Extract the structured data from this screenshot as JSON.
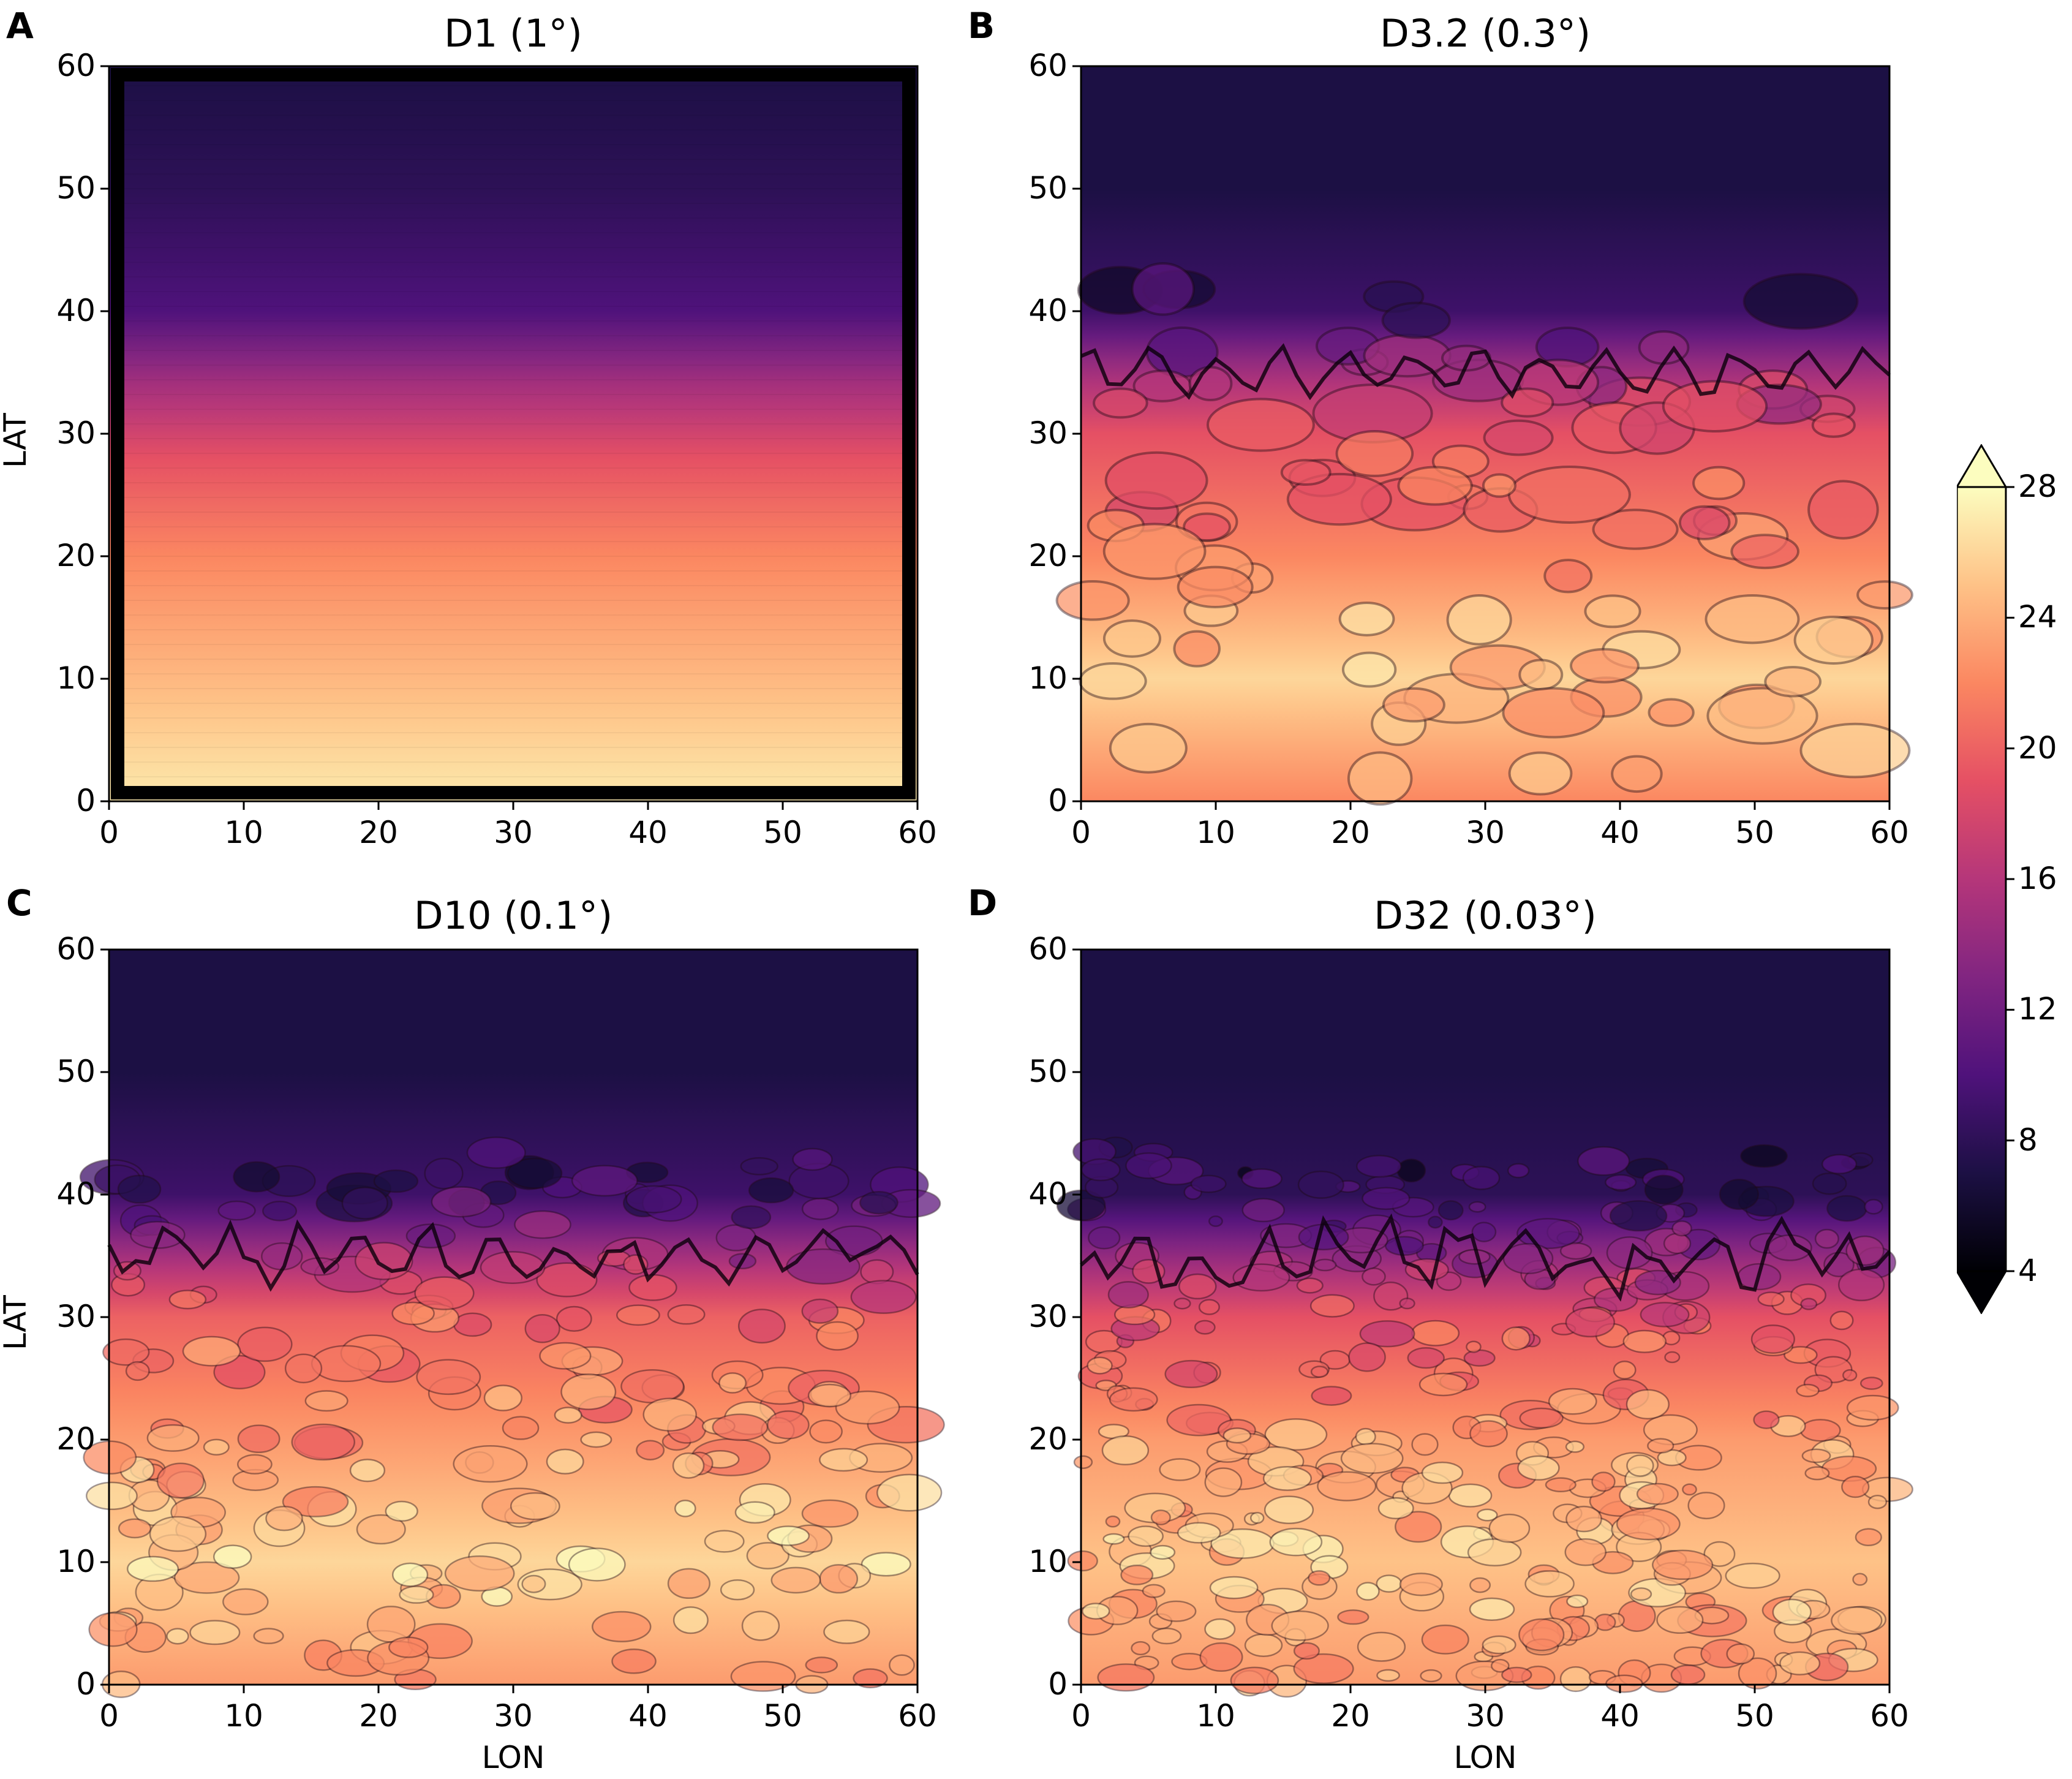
{
  "chart_data": [
    {
      "type": "heatmap",
      "panel": "A",
      "title": "D1 (1°)",
      "xlabel": "",
      "ylabel": "LAT",
      "xlim": [
        0,
        60
      ],
      "ylim": [
        0,
        60
      ],
      "xticks": [
        "0",
        "10",
        "20",
        "30",
        "40",
        "50",
        "60"
      ],
      "yticks": [
        "0",
        "10",
        "20",
        "30",
        "40",
        "50",
        "60"
      ],
      "field_profile": [
        {
          "lat": 0,
          "value": 27
        },
        {
          "lat": 8,
          "value": 25
        },
        {
          "lat": 20,
          "value": 22
        },
        {
          "lat": 28,
          "value": 19
        },
        {
          "lat": 34,
          "value": 15
        },
        {
          "lat": 40,
          "value": 10
        },
        {
          "lat": 50,
          "value": 8
        },
        {
          "lat": 60,
          "value": 7
        }
      ],
      "roughness": 0
    },
    {
      "type": "heatmap",
      "panel": "B",
      "title": "D3.2 (0.3°)",
      "xlabel": "",
      "ylabel": "",
      "xlim": [
        0,
        60
      ],
      "ylim": [
        0,
        60
      ],
      "xticks": [
        "0",
        "10",
        "20",
        "30",
        "40",
        "50",
        "60"
      ],
      "yticks": [
        "0",
        "10",
        "20",
        "30",
        "40",
        "50",
        "60"
      ],
      "field_profile": [
        {
          "lat": 0,
          "value": 22
        },
        {
          "lat": 10,
          "value": 26
        },
        {
          "lat": 20,
          "value": 22
        },
        {
          "lat": 30,
          "value": 19
        },
        {
          "lat": 35,
          "value": 15
        },
        {
          "lat": 40,
          "value": 9
        },
        {
          "lat": 50,
          "value": 7
        },
        {
          "lat": 60,
          "value": 7
        }
      ],
      "roughness": 1
    },
    {
      "type": "heatmap",
      "panel": "C",
      "title": "D10 (0.1°)",
      "xlabel": "LON",
      "ylabel": "LAT",
      "xlim": [
        0,
        60
      ],
      "ylim": [
        0,
        60
      ],
      "xticks": [
        "0",
        "10",
        "20",
        "30",
        "40",
        "50",
        "60"
      ],
      "yticks": [
        "0",
        "10",
        "20",
        "30",
        "40",
        "50",
        "60"
      ],
      "field_profile": [
        {
          "lat": 0,
          "value": 23
        },
        {
          "lat": 10,
          "value": 26
        },
        {
          "lat": 20,
          "value": 23
        },
        {
          "lat": 30,
          "value": 20
        },
        {
          "lat": 35,
          "value": 15
        },
        {
          "lat": 40,
          "value": 9
        },
        {
          "lat": 50,
          "value": 7
        },
        {
          "lat": 60,
          "value": 7
        }
      ],
      "roughness": 2
    },
    {
      "type": "heatmap",
      "panel": "D",
      "title": "D32 (0.03°)",
      "xlabel": "LON",
      "ylabel": "",
      "xlim": [
        0,
        60
      ],
      "ylim": [
        0,
        60
      ],
      "xticks": [
        "0",
        "10",
        "20",
        "30",
        "40",
        "50",
        "60"
      ],
      "yticks": [
        "0",
        "10",
        "20",
        "30",
        "40",
        "50",
        "60"
      ],
      "field_profile": [
        {
          "lat": 0,
          "value": 23
        },
        {
          "lat": 10,
          "value": 25
        },
        {
          "lat": 20,
          "value": 23
        },
        {
          "lat": 30,
          "value": 19
        },
        {
          "lat": 35,
          "value": 14
        },
        {
          "lat": 40,
          "value": 8
        },
        {
          "lat": 50,
          "value": 7
        },
        {
          "lat": 60,
          "value": 7
        }
      ],
      "roughness": 3
    }
  ],
  "colorbar": {
    "colormap": "magma",
    "range": [
      4,
      28
    ],
    "ticks": [
      "28",
      "24",
      "20",
      "16",
      "12",
      "8",
      "4"
    ],
    "extend": "both"
  },
  "colors": {
    "magma_stops": [
      "#000004",
      "#1c1044",
      "#4f127b",
      "#812581",
      "#b5367a",
      "#e55064",
      "#fb8761",
      "#fec287",
      "#fcfdbf"
    ]
  }
}
